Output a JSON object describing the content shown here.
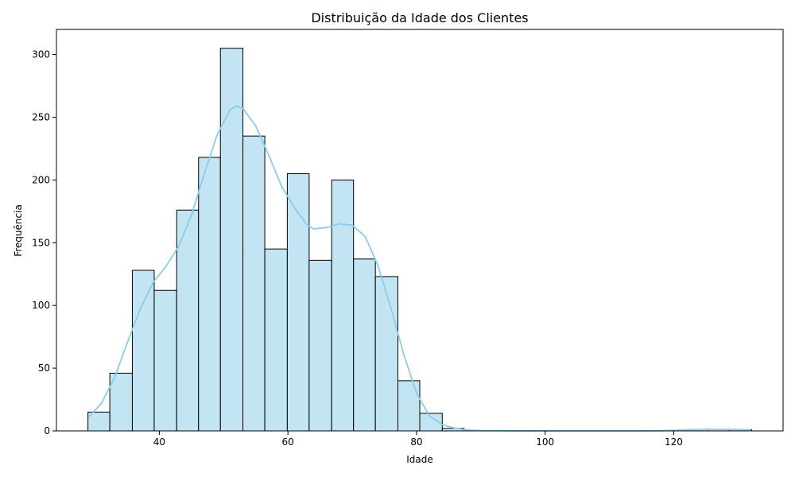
{
  "chart_data": {
    "type": "bar",
    "title": "Distribuição da Idade dos Clientes",
    "xlabel": "Idade",
    "ylabel": "Frequência",
    "xlim": [
      24,
      137
    ],
    "ylim": [
      0,
      320
    ],
    "xticks": [
      40,
      60,
      80,
      100,
      120
    ],
    "yticks": [
      0,
      50,
      100,
      150,
      200,
      250,
      300
    ],
    "grid": false,
    "bar_color": "#c3e4f2",
    "bar_edge_color": "#000000",
    "kde_color": "#87ceeb",
    "bins": [
      {
        "start": 28.9,
        "end": 32.3,
        "value": 15
      },
      {
        "start": 32.3,
        "end": 35.8,
        "value": 46
      },
      {
        "start": 35.8,
        "end": 39.2,
        "value": 128
      },
      {
        "start": 39.2,
        "end": 42.7,
        "value": 112
      },
      {
        "start": 42.7,
        "end": 46.1,
        "value": 176
      },
      {
        "start": 46.1,
        "end": 49.5,
        "value": 218
      },
      {
        "start": 49.5,
        "end": 53.0,
        "value": 305
      },
      {
        "start": 53.0,
        "end": 56.4,
        "value": 235
      },
      {
        "start": 56.4,
        "end": 59.9,
        "value": 145
      },
      {
        "start": 59.9,
        "end": 63.3,
        "value": 205
      },
      {
        "start": 63.3,
        "end": 66.8,
        "value": 136
      },
      {
        "start": 66.8,
        "end": 70.2,
        "value": 200
      },
      {
        "start": 70.2,
        "end": 73.6,
        "value": 137
      },
      {
        "start": 73.6,
        "end": 77.1,
        "value": 123
      },
      {
        "start": 77.1,
        "end": 80.5,
        "value": 40
      },
      {
        "start": 80.5,
        "end": 84.0,
        "value": 14
      },
      {
        "start": 84.0,
        "end": 87.4,
        "value": 2
      },
      {
        "start": 121.8,
        "end": 125.2,
        "value": 1
      },
      {
        "start": 125.2,
        "end": 128.7,
        "value": 1
      },
      {
        "start": 128.7,
        "end": 132.1,
        "value": 1
      }
    ],
    "kde_curve": {
      "x": [
        29,
        31,
        33,
        35,
        37,
        39,
        41,
        43,
        45,
        47,
        49,
        51,
        52,
        53,
        55,
        57,
        59,
        61,
        63,
        64,
        66,
        68,
        70,
        72,
        74,
        76,
        78,
        80,
        82,
        84,
        86,
        88,
        90,
        95,
        100,
        105,
        110,
        115,
        118,
        120,
        122,
        125,
        128,
        130,
        132
      ],
      "y": [
        11,
        22,
        42,
        70,
        97,
        118,
        131,
        147,
        172,
        205,
        236,
        256,
        259,
        257,
        243,
        220,
        195,
        178,
        164,
        161,
        162,
        165,
        164,
        155,
        132,
        98,
        61,
        30,
        12,
        5,
        2,
        0.7,
        0.3,
        0.1,
        0,
        0,
        0,
        0,
        0.2,
        0.5,
        0.9,
        1.2,
        1.2,
        1.0,
        0.8
      ]
    }
  }
}
